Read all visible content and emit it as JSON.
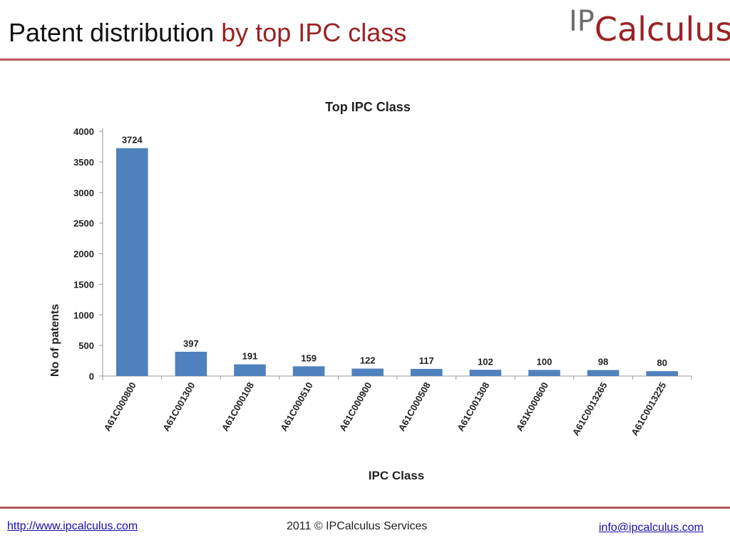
{
  "slide": {
    "title_main": "Patent distribution",
    "title_accent": "by top IPC class",
    "logo_ip": "IP",
    "logo_rest": "Calculus"
  },
  "footer": {
    "website": "http://www.ipcalculus.com",
    "copyright": "2011 © IPCalculus Services",
    "email": "info@ipcalculus.com"
  },
  "colors": {
    "accent": "#9b2224",
    "bar": "#4f81bd",
    "logo_gray": "#6d6d6d"
  },
  "chart_data": {
    "type": "bar",
    "title": "Top IPC Class",
    "xlabel": "IPC Class",
    "ylabel": "No of patents",
    "categories": [
      "A61C000800",
      "A61C001300",
      "A61C000108",
      "A61C000510",
      "A61C000900",
      "A61C000508",
      "A61C001308",
      "A61K000600",
      "A61C0013265",
      "A61C0013225"
    ],
    "values": [
      3724,
      397,
      191,
      159,
      122,
      117,
      102,
      100,
      98,
      80
    ],
    "ylim": [
      0,
      4000
    ],
    "yticks": [
      0,
      500,
      1000,
      1500,
      2000,
      2500,
      3000,
      3500,
      4000
    ],
    "grid": false,
    "legend": "none",
    "data_labels": true
  }
}
